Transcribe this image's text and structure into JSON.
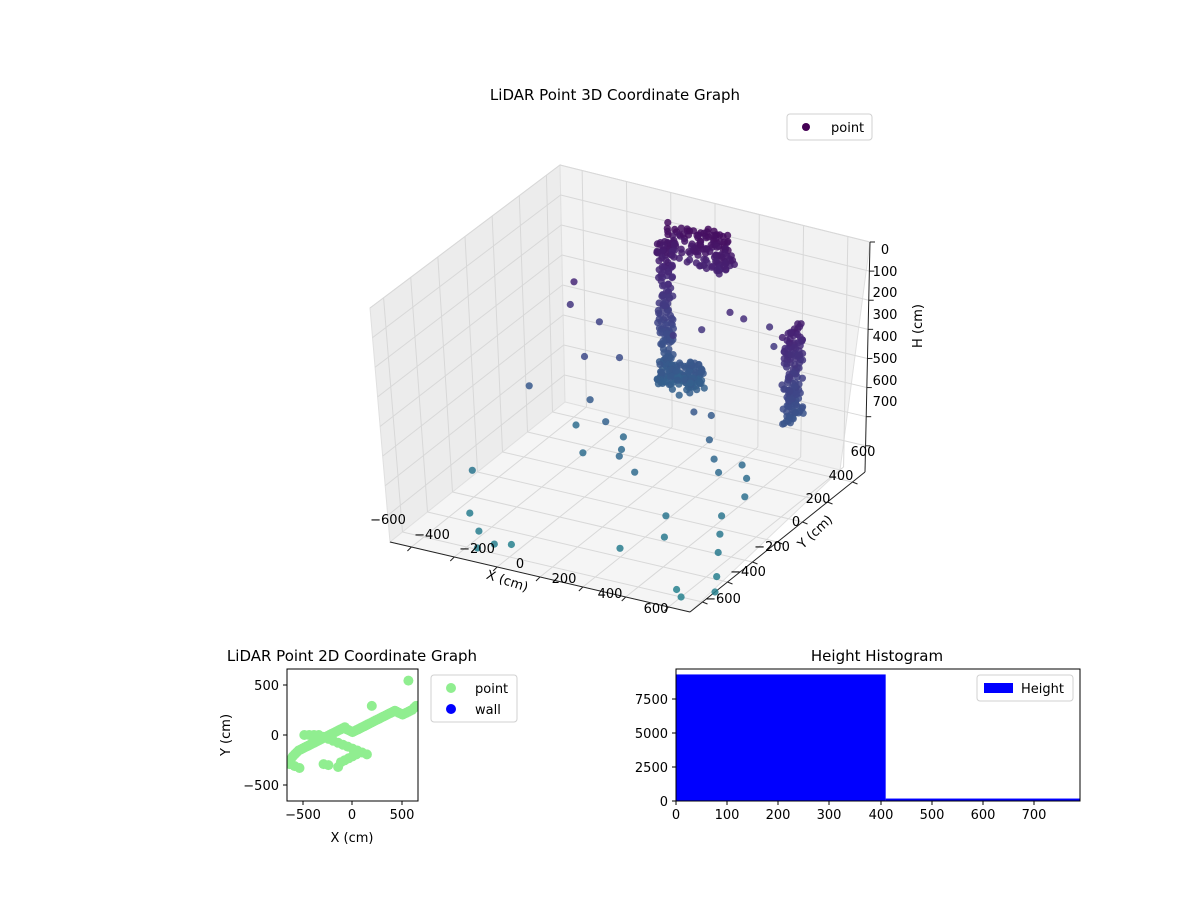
{
  "chart_data": [
    {
      "type": "scatter3d",
      "title": "LiDAR Point 3D Coordinate Graph",
      "xlabel": "X (cm)",
      "ylabel": "Y (cm)",
      "zlabel": "H (cm)",
      "xticks": [
        "−600",
        "−400",
        "−200",
        "0",
        "200",
        "400",
        "600"
      ],
      "yticks": [
        "600",
        "400",
        "200",
        "0",
        "−200",
        "−400",
        "−600"
      ],
      "zticks": [
        "0",
        "100",
        "200",
        "300",
        "400",
        "500",
        "600",
        "700"
      ],
      "xlim": [
        -700,
        700
      ],
      "ylim": [
        -700,
        700
      ],
      "zlim": [
        0,
        790
      ],
      "z_inverted": true,
      "grid": true,
      "legend": {
        "position": "top-right",
        "entries": [
          {
            "label": "point",
            "color": "#440154"
          }
        ]
      },
      "colormap": "viridis (by height)",
      "series": [
        {
          "name": "point",
          "clusters": [
            {
              "desc": "vertical wall column, left",
              "x": [
                -160,
                -100
              ],
              "y": [
                520,
                560
              ],
              "h": [
                100,
                530
              ]
            },
            {
              "desc": "floor arm, left",
              "x": [
                -120,
                60
              ],
              "y": [
                420,
                560
              ],
              "h": [
                480,
                560
              ]
            },
            {
              "desc": "horizontal ceiling band",
              "x": [
                -160,
                140
              ],
              "y": [
                560,
                640
              ],
              "h": [
                60,
                180
              ]
            },
            {
              "desc": "vertical wall column, right",
              "x": [
                600,
                640
              ],
              "y": [
                200,
                320
              ],
              "h": [
                150,
                480
              ]
            }
          ],
          "scattered": [
            [
              -400,
              300,
              200
            ],
            [
              -420,
              300,
              280
            ],
            [
              -350,
              400,
              360
            ],
            [
              -300,
              200,
              400
            ],
            [
              -200,
              300,
              420
            ],
            [
              -250,
              150,
              520
            ],
            [
              -150,
              100,
              560
            ],
            [
              -100,
              150,
              620
            ],
            [
              -50,
              50,
              620
            ],
            [
              -350,
              200,
              640
            ],
            [
              -200,
              0,
              640
            ],
            [
              50,
              300,
              300
            ],
            [
              150,
              350,
              280
            ],
            [
              250,
              400,
              220
            ],
            [
              300,
              420,
              240
            ],
            [
              400,
              450,
              260
            ],
            [
              450,
              400,
              300
            ],
            [
              200,
              200,
              500
            ],
            [
              250,
              250,
              520
            ],
            [
              300,
              150,
              560
            ],
            [
              350,
              100,
              600
            ],
            [
              400,
              50,
              620
            ],
            [
              450,
              150,
              620
            ],
            [
              500,
              100,
              640
            ],
            [
              550,
              0,
              660
            ],
            [
              500,
              -100,
              700
            ],
            [
              550,
              -200,
              720
            ],
            [
              600,
              -300,
              740
            ],
            [
              300,
              -200,
              700
            ],
            [
              350,
              -300,
              730
            ],
            [
              200,
              -400,
              760
            ],
            [
              100,
              -100,
              620
            ],
            [
              0,
              -50,
              600
            ],
            [
              -600,
              -200,
              700
            ],
            [
              -500,
              -400,
              760
            ],
            [
              -400,
              -500,
              770
            ],
            [
              -300,
              -550,
              780
            ],
            [
              -350,
              -600,
              785
            ],
            [
              -250,
              -500,
              790
            ],
            [
              650,
              -400,
              780
            ],
            [
              700,
              -500,
              790
            ],
            [
              600,
              -600,
              790
            ],
            [
              550,
              -550,
              790
            ],
            [
              -500,
              100,
              500
            ]
          ]
        }
      ]
    },
    {
      "type": "scatter",
      "title": "LiDAR Point 2D Coordinate Graph",
      "xlabel": "X (cm)",
      "ylabel": "Y (cm)",
      "xlim": [
        -680,
        680
      ],
      "ylim": [
        -680,
        680
      ],
      "xticks": [
        "−500",
        "0",
        "500"
      ],
      "yticks": [
        "500",
        "0",
        "−500"
      ],
      "legend": {
        "position": "outside-right",
        "entries": [
          {
            "label": "point",
            "color": "#90EE90"
          },
          {
            "label": "wall",
            "color": "#0000FF"
          }
        ]
      },
      "series": [
        {
          "name": "point",
          "color": "#90EE90",
          "x": [
            -650,
            -640,
            -620,
            -600,
            -580,
            -560,
            -540,
            -520,
            -500,
            -480,
            -460,
            -440,
            -420,
            -400,
            -380,
            -360,
            -340,
            -320,
            -300,
            -280,
            -260,
            -240,
            -220,
            -200,
            -180,
            -160,
            -140,
            -120,
            -100,
            -80,
            -60,
            -40,
            -20,
            0,
            20,
            40,
            60,
            80,
            100,
            120,
            140,
            160,
            180,
            200,
            220,
            240,
            260,
            280,
            300,
            320,
            340,
            360,
            380,
            400,
            420,
            440,
            460,
            480,
            500,
            520,
            540,
            560,
            580,
            600,
            620,
            640,
            660,
            -500,
            -450,
            -400,
            -350,
            -300,
            -250,
            -200,
            -150,
            -100,
            -50,
            0,
            50,
            100,
            150,
            -600,
            -550,
            -300,
            -250,
            -150,
            -120,
            -80,
            -40,
            0,
            40,
            200,
            580
          ],
          "y": [
            -300,
            -250,
            -220,
            -200,
            -180,
            -160,
            -150,
            -140,
            -130,
            -120,
            -110,
            -100,
            -90,
            -80,
            -70,
            -60,
            -50,
            -40,
            -30,
            -20,
            -10,
            0,
            10,
            20,
            30,
            40,
            50,
            60,
            70,
            80,
            60,
            50,
            40,
            30,
            40,
            50,
            60,
            70,
            80,
            90,
            100,
            110,
            120,
            130,
            140,
            150,
            160,
            170,
            180,
            190,
            200,
            210,
            220,
            230,
            240,
            250,
            240,
            230,
            220,
            210,
            220,
            230,
            240,
            250,
            260,
            280,
            300,
            0,
            0,
            0,
            0,
            -20,
            -40,
            -60,
            -80,
            -100,
            -120,
            -140,
            -160,
            -180,
            -200,
            -320,
            -340,
            -300,
            -310,
            -330,
            -280,
            -260,
            -240,
            -220,
            -200,
            300,
            560
          ]
        },
        {
          "name": "wall",
          "color": "#0000FF",
          "x": [],
          "y": []
        }
      ]
    },
    {
      "type": "bar",
      "title": "Height Histogram",
      "xlabel": "",
      "ylabel": "",
      "xlim": [
        0,
        790
      ],
      "ylim": [
        0,
        9700
      ],
      "xticks": [
        "0",
        "100",
        "200",
        "300",
        "400",
        "500",
        "600",
        "700"
      ],
      "yticks": [
        "0",
        "2500",
        "5000",
        "7500"
      ],
      "legend": {
        "position": "top-right",
        "entries": [
          {
            "label": "Height",
            "color": "#0000FF"
          }
        ]
      },
      "series": [
        {
          "name": "Height",
          "color": "#0000FF",
          "bins": [
            [
              0,
              410
            ],
            [
              410,
              790
            ]
          ],
          "values": [
            9300,
            180
          ]
        }
      ]
    }
  ]
}
